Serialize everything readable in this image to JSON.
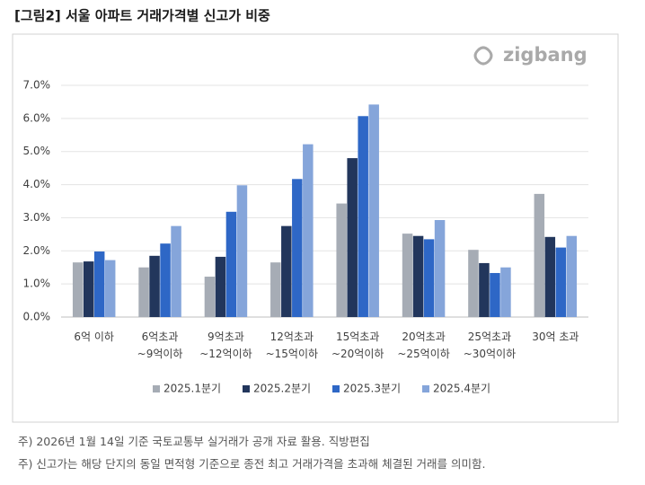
{
  "chart_data": {
    "type": "bar",
    "title": "[그림2] 서울 아파트 거래가격별 신고가 비중",
    "logo": "zigbang",
    "categories": [
      "6억 이하",
      "6억초과\n~9억이하",
      "9억초과\n~12억이하",
      "12억초과\n~15억이하",
      "15억초과\n~20억이하",
      "20억초과\n~25억이하",
      "25억초과\n~30억이하",
      "30억 초과"
    ],
    "series": [
      {
        "name": "2025.1분기",
        "color": "#a6acb5",
        "values": [
          1.65,
          1.5,
          1.22,
          1.65,
          3.43,
          2.52,
          2.03,
          3.72
        ]
      },
      {
        "name": "2025.2분기",
        "color": "#22365c",
        "values": [
          1.68,
          1.85,
          1.82,
          2.75,
          4.8,
          2.45,
          1.63,
          2.42
        ]
      },
      {
        "name": "2025.3분기",
        "color": "#2e67c6",
        "values": [
          1.98,
          2.22,
          3.18,
          4.17,
          6.07,
          2.35,
          1.33,
          2.1
        ]
      },
      {
        "name": "2025.4분기",
        "color": "#85a5da",
        "values": [
          1.72,
          2.75,
          3.98,
          5.22,
          6.42,
          2.93,
          1.5,
          2.45
        ]
      }
    ],
    "ylim": [
      0,
      7
    ],
    "yticks": [
      {
        "value": 0,
        "label": "0.0%"
      },
      {
        "value": 1,
        "label": "1.0%"
      },
      {
        "value": 2,
        "label": "2.0%"
      },
      {
        "value": 3,
        "label": "3.0%"
      },
      {
        "value": 4,
        "label": "4.0%"
      },
      {
        "value": 5,
        "label": "5.0%"
      },
      {
        "value": 6,
        "label": "6.0%"
      },
      {
        "value": 7,
        "label": "7.0%"
      }
    ],
    "grid": true,
    "legend": "bottom",
    "notes": [
      "주) 2026년 1월 14일 기준 국토교통부 실거래가 공개 자료 활용. 직방편집",
      "주) 신고가는 해당 단지의 동일 면적형 기준으로 종전 최고 거래가격을 초과해 체결된 거래를  의미함."
    ]
  }
}
